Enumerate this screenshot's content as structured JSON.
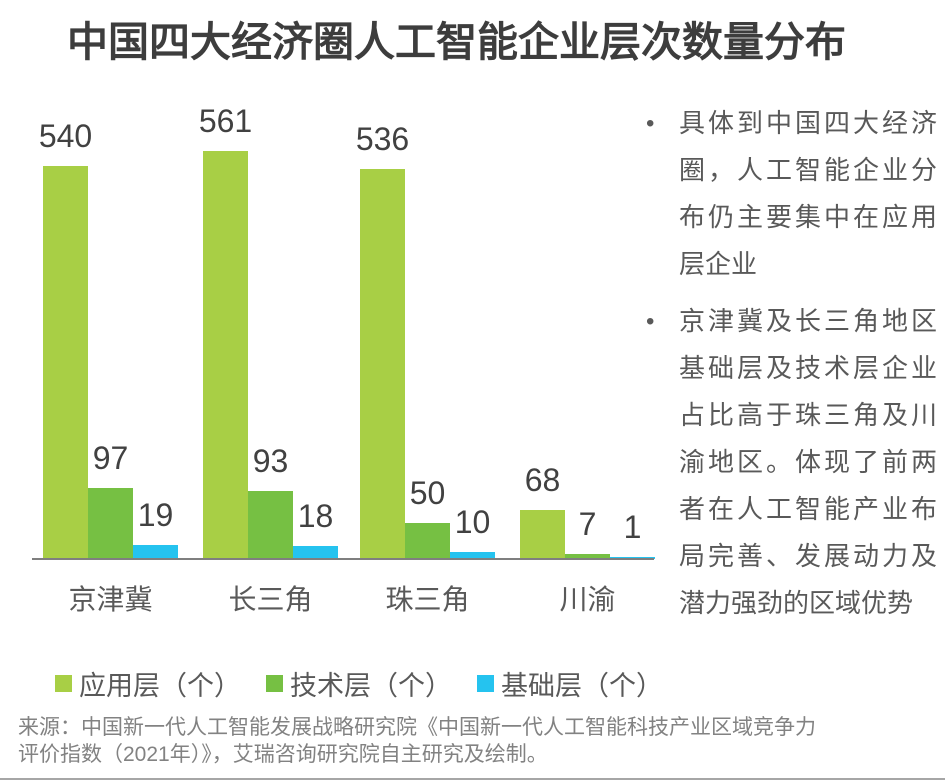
{
  "title": "中国四大经济圈人工智能企业层次数量分布",
  "chart_data": {
    "type": "bar",
    "categories": [
      "京津冀",
      "长三角",
      "珠三角",
      "川渝"
    ],
    "series": [
      {
        "name": "应用层（个）",
        "color": "#a8cf45",
        "values": [
          540,
          561,
          536,
          68
        ]
      },
      {
        "name": "技术层（个）",
        "color": "#76c043",
        "values": [
          97,
          93,
          50,
          7
        ]
      },
      {
        "name": "基础层（个）",
        "color": "#25c3ef",
        "values": [
          19,
          18,
          10,
          1
        ]
      }
    ],
    "title": "中国四大经济圈人工智能企业层次数量分布",
    "xlabel": "",
    "ylabel": "",
    "ylim": [
      0,
      561
    ],
    "value_labels": true,
    "grid": false,
    "y_axis_visible": false,
    "legend_position": "bottom"
  },
  "insights": {
    "bullets": [
      "具体到中国四大经济圈，人工智能企业分布仍主要集中在应用层企业",
      "京津冀及长三角地区基础层及技术层企业占比高于珠三角及川渝地区。体现了前两者在人工智能产业布局完善、发展动力及潜力强劲的区域优势"
    ],
    "bullet_glyph": "•"
  },
  "source": {
    "lines": [
      "来源：中国新一代人工智能发展战略研究院《中国新一代人工智能科技产业区域竞争力",
      "评价指数（2021年）》，艾瑞咨询研究院自主研究及绘制。"
    ]
  },
  "colors": {
    "title_text": "#3d3d3d",
    "value_label_text": "#414141",
    "axis_line": "#7f7f7f",
    "category_text": "#595959",
    "body_text": "#595959",
    "source_text": "#828282",
    "bottom_rule": "#a6a6a6",
    "series_app": "#a8cf45",
    "series_tech": "#76c043",
    "series_base": "#25c3ef"
  }
}
